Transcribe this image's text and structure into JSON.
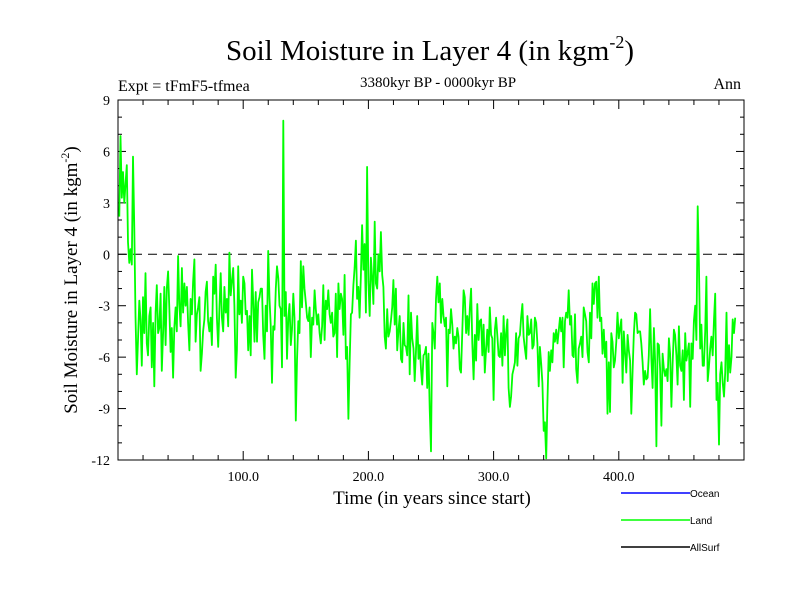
{
  "chart_data": {
    "type": "line",
    "title": "Soil Moisture in Layer 4 (in kgm",
    "title_sup": "-2",
    "title_close": ")",
    "subtitle": "3380kyr BP - 0000kyr BP",
    "expt_label": "Expt = tFmF5-tfmea",
    "season_label": "Ann",
    "xlabel": "Time (in years since start)",
    "ylabel": "Soil Moisture in Layer 4 (in kgm",
    "ylabel_sup": "-2",
    "ylabel_close": ")",
    "xlim": [
      0,
      500
    ],
    "ylim": [
      -12,
      9
    ],
    "x_ticks": [
      {
        "value": 100,
        "label": "100.0"
      },
      {
        "value": 200,
        "label": "200.0"
      },
      {
        "value": 300,
        "label": "300.0"
      },
      {
        "value": 400,
        "label": "400.0"
      }
    ],
    "y_ticks": [
      {
        "value": 9,
        "label": "9"
      },
      {
        "value": 6,
        "label": "6"
      },
      {
        "value": 3,
        "label": "3"
      },
      {
        "value": 0,
        "label": "0"
      },
      {
        "value": -3,
        "label": "-3"
      },
      {
        "value": -6,
        "label": "-6"
      },
      {
        "value": -9,
        "label": "-9"
      },
      {
        "value": -12,
        "label": "-12"
      }
    ],
    "reference_line": {
      "y": 0,
      "style": "dashed"
    },
    "legend": [
      {
        "name": "Ocean",
        "color": "#0000ff"
      },
      {
        "name": "Land",
        "color": "#00ff00"
      },
      {
        "name": "AllSurf",
        "color": "#000000"
      }
    ],
    "series": [
      {
        "name": "Land",
        "color": "#00ff00",
        "x_start": 1,
        "x_step": 1,
        "values": [
          2.2,
          6.9,
          3.3,
          4.8,
          3.0,
          4.1,
          5.2,
          0.7,
          -0.5,
          0.3,
          -0.6,
          5.7,
          1.5,
          -3.6,
          -7.0,
          -5.0,
          -2.7,
          -3.8,
          -6.5,
          -2.5,
          -4.6,
          -1.1,
          -5.2,
          -5.9,
          -3.6,
          -3.1,
          -6.6,
          -4.0,
          -7.7,
          -3.4,
          -1.8,
          -4.6,
          -4.3,
          -2.3,
          -6.8,
          -4.6,
          -1.9,
          -5.3,
          -2.0,
          -1.0,
          -3.1,
          -5.7,
          -4.3,
          -7.2,
          -4.3,
          -3.1,
          -4.5,
          -0.1,
          -2.9,
          -4.2,
          -0.8,
          -3.4,
          -1.7,
          -3.0,
          -1.9,
          -4.0,
          -5.6,
          -2.6,
          -3.5,
          -1.6,
          -0.3,
          -5.1,
          -3.5,
          -3.1,
          -2.5,
          -6.8,
          -5.8,
          -4.5,
          -3.8,
          -2.2,
          -1.6,
          -3.9,
          -4.5,
          -3.7,
          -5.3,
          -1.3,
          -2.3,
          -0.6,
          -3.7,
          -5.4,
          -3.2,
          -1.1,
          -3.7,
          -4.5,
          -1.9,
          -3.4,
          -2.6,
          -4.2,
          0.1,
          -2.4,
          -1.6,
          -0.8,
          -3.0,
          -7.2,
          -5.6,
          -0.7,
          -3.5,
          -2.7,
          -4.0,
          -1.3,
          -1.7,
          -3.5,
          -3.3,
          -5.6,
          -3.6,
          -5.9,
          -0.9,
          -2.7,
          -5.1,
          -2.2,
          -5.1,
          -2.8,
          -2.5,
          -2.0,
          -2.0,
          -4.7,
          -6.1,
          -3.0,
          -4.5,
          0.2,
          -2.6,
          -4.1,
          -7.5,
          -4.2,
          -4.4,
          -2.0,
          -0.7,
          -1.4,
          -3.0,
          -3.2,
          -6.6,
          7.8,
          -3.6,
          -2.2,
          -6.1,
          -3.7,
          -2.9,
          -5.3,
          -4.4,
          -2.3,
          -3.7,
          -9.7,
          -6.2,
          -3.9,
          -4.6,
          -0.4,
          -3.1,
          -0.7,
          -2.0,
          -2.8,
          -3.7,
          -3.9,
          -3.1,
          -6.0,
          -3.7,
          -4.1,
          -2.1,
          -3.2,
          -4.1,
          -3.5,
          -4.6,
          -5.2,
          -4.2,
          -1.8,
          -5.0,
          -2.7,
          -3.2,
          -2.1,
          -3.5,
          -4.0,
          -3.4,
          -4.8,
          -4.6,
          -2.3,
          -6.0,
          -1.7,
          -3.2,
          -2.3,
          -2.6,
          -4.7,
          -1.2,
          -6.1,
          -5.4,
          -9.6,
          -6.4,
          -3.5,
          -3.4,
          -1.8,
          -0.8,
          0.8,
          -2.6,
          -1.9,
          -3.7,
          -1.2,
          1.7,
          -0.9,
          0.6,
          -3.4,
          5.1,
          -1.6,
          -3.6,
          -0.2,
          -1.4,
          -2.9,
          1.9,
          -1.7,
          -2.0,
          0.0,
          -1.0,
          1.3,
          -1.2,
          -1.9,
          -4.8,
          -5.5,
          -3.2,
          -4.8,
          -4.5,
          -3.9,
          -3.1,
          -1.5,
          -4.1,
          -2.0,
          -5.6,
          -4.5,
          -3.6,
          -6.1,
          -6.3,
          -4.0,
          -5.3,
          -5.4,
          -5.9,
          -2.4,
          -7.0,
          -3.4,
          -4.9,
          -5.5,
          -7.4,
          -5.6,
          -3.6,
          -6.1,
          -5.3,
          -6.7,
          -7.6,
          -5.9,
          -5.8,
          -5.4,
          -7.8,
          -5.8,
          -9.0,
          -11.5,
          -4.0,
          -4.6,
          -5.5,
          -2.6,
          -1.3,
          -2.8,
          -1.7,
          -4.0,
          -2.6,
          -3.6,
          -4.2,
          -3.7,
          -7.7,
          -4.4,
          -4.6,
          -3.2,
          -4.1,
          -5.5,
          -4.8,
          -5.2,
          -4.3,
          -4.8,
          -6.7,
          -6.9,
          -4.5,
          -2.1,
          -2.5,
          -4.6,
          -3.6,
          -4.7,
          -3.2,
          -2.0,
          -5.2,
          -7.3,
          -4.7,
          -6.2,
          -2.9,
          -5.0,
          -3.9,
          -3.8,
          -5.9,
          -4.1,
          -6.9,
          -5.5,
          -4.4,
          -5.7,
          -3.1,
          -4.7,
          -4.9,
          -8.5,
          -4.4,
          -3.7,
          -4.8,
          -5.9,
          -6.0,
          -4.6,
          -6.5,
          -3.6,
          -5.9,
          -4.6,
          -3.8,
          -7.8,
          -8.9,
          -8.3,
          -7.0,
          -6.7,
          -6.3,
          -4.6,
          -6.5,
          -4.9,
          -4.7,
          -3.7,
          -2.9,
          -4.8,
          -5.5,
          -6.1,
          -3.6,
          -4.7,
          -4.6,
          -3.8,
          -5.5,
          -5.3,
          -3.7,
          -4.0,
          -5.2,
          -7.7,
          -5.4,
          -6.4,
          -7.5,
          -10.3,
          -9.8,
          -11.9,
          -8.7,
          -5.7,
          -6.8,
          -5.6,
          -6.3,
          -4.6,
          -5.1,
          -4.4,
          -5.2,
          -4.5,
          -3.7,
          -4.5,
          -3.7,
          -6.6,
          -3.9,
          -3.4,
          -3.7,
          -2.1,
          -4.1,
          -3.6,
          -5.9,
          -6.0,
          -3.5,
          -6.7,
          -7.5,
          -5.5,
          -5.2,
          -4.8,
          -6.0,
          -3.1,
          -3.5,
          -3.9,
          -5.7,
          -6.3,
          -3.4,
          -4.9,
          -1.7,
          -2.9,
          -1.7,
          -1.6,
          -3.7,
          -1.3,
          -3.9,
          -3.7,
          -5.8,
          -4.4,
          -6.0,
          -5.1,
          -9.3,
          -6.3,
          -9.2,
          -4.6,
          -5.1,
          -6.6,
          -6.2,
          -5.1,
          -3.4,
          -4.9,
          -4.3,
          -3.8,
          -7.5,
          -4.5,
          -5.8,
          -6.9,
          -4.7,
          -5.6,
          -6.2,
          -9.3,
          -6.8,
          -4.7,
          -3.4,
          -3.5,
          -4.6,
          -4.5,
          -4.5,
          -5.2,
          -6.3,
          -7.6,
          -6.8,
          -7.3,
          -7.2,
          -5.9,
          -3.2,
          -6.1,
          -7.8,
          -4.3,
          -6.2,
          -11.2,
          -5.2,
          -5.3,
          -6.7,
          -10.0,
          -5.8,
          -6.7,
          -7.1,
          -6.7,
          -7.4,
          -4.9,
          -5.8,
          -8.9,
          -6.4,
          -4.4,
          -4.7,
          -5.9,
          -7.6,
          -4.2,
          -6.5,
          -6.8,
          -5.6,
          -8.5,
          -4.6,
          -6.2,
          -5.7,
          -5.2,
          -8.9,
          -5.2,
          -6.1,
          -3.9,
          -3.0,
          -5.0,
          2.8,
          -0.5,
          -5.5,
          -4.1,
          -6.5,
          -6.5,
          -4.5,
          -1.3,
          -7.4,
          -6.6,
          -5.5,
          -4.8,
          -5.9,
          -3.8,
          -2.3,
          -8.5,
          -7.5,
          -11.1,
          -7.0,
          -6.3,
          -7.5,
          -8.3,
          -6.9,
          -3.4,
          -7.4,
          -5.3,
          -6.9,
          -6.0,
          -3.8,
          -4.6,
          -3.7
        ]
      }
    ]
  }
}
